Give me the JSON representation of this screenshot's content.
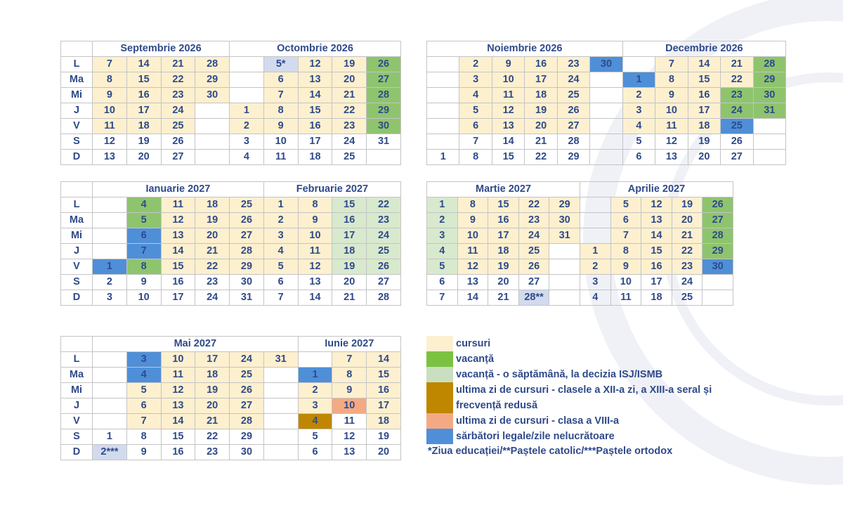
{
  "day_labels": [
    "L",
    "Ma",
    "Mi",
    "J",
    "V",
    "S",
    "D"
  ],
  "colors": {
    "c": "#fdf0cf",
    "v": "#8fc46e",
    "w": "#d8e9cd",
    "e": "#bf8600",
    "o": "#f5a983",
    "h": "#4f8fd8",
    "s": "#d2dbee"
  },
  "blocks": [
    {
      "labels": true,
      "months": [
        {
          "name": "Septembrie 2026",
          "weeks": [
            {
              "d": [
                "7",
                "8",
                "9",
                "10",
                "11",
                "12",
                "13"
              ],
              "k": "ccccc__"
            },
            {
              "d": [
                "14",
                "15",
                "16",
                "17",
                "18",
                "19",
                "20"
              ],
              "k": "ccccc__"
            },
            {
              "d": [
                "21",
                "22",
                "23",
                "24",
                "25",
                "26",
                "27"
              ],
              "k": "ccccc__"
            },
            {
              "d": [
                "28",
                "29",
                "30",
                "",
                "",
                "",
                ""
              ],
              "k": "ccc____"
            }
          ]
        },
        {
          "name": "Octombrie 2026",
          "weeks": [
            {
              "d": [
                "",
                "",
                "",
                "1",
                "2",
                "3",
                "4"
              ],
              "k": "___cc__"
            },
            {
              "d": [
                "5*",
                "6",
                "7",
                "8",
                "9",
                "10",
                "11"
              ],
              "k": "scccc__"
            },
            {
              "d": [
                "12",
                "13",
                "14",
                "15",
                "16",
                "17",
                "18"
              ],
              "k": "ccccc__"
            },
            {
              "d": [
                "19",
                "20",
                "21",
                "22",
                "23",
                "24",
                "25"
              ],
              "k": "ccccc__"
            },
            {
              "d": [
                "26",
                "27",
                "28",
                "29",
                "30",
                "31",
                ""
              ],
              "k": "vvvvv__"
            }
          ]
        }
      ]
    },
    {
      "labels": false,
      "months": [
        {
          "name": "Noiembrie 2026",
          "weeks": [
            {
              "d": [
                "",
                "",
                "",
                "",
                "",
                "",
                "1"
              ],
              "k": "_______"
            },
            {
              "d": [
                "2",
                "3",
                "4",
                "5",
                "6",
                "7",
                "8"
              ],
              "k": "ccccc__"
            },
            {
              "d": [
                "9",
                "10",
                "11",
                "12",
                "13",
                "14",
                "15"
              ],
              "k": "ccccc__"
            },
            {
              "d": [
                "16",
                "17",
                "18",
                "19",
                "20",
                "21",
                "22"
              ],
              "k": "ccccc__"
            },
            {
              "d": [
                "23",
                "24",
                "25",
                "26",
                "27",
                "28",
                "29"
              ],
              "k": "ccccc__"
            },
            {
              "d": [
                "30",
                "",
                "",
                "",
                "",
                "",
                ""
              ],
              "k": "h______"
            }
          ]
        },
        {
          "name": "Decembrie 2026",
          "weeks": [
            {
              "d": [
                "",
                "1",
                "2",
                "3",
                "4",
                "5",
                "6"
              ],
              "k": "_hccc__"
            },
            {
              "d": [
                "7",
                "8",
                "9",
                "10",
                "11",
                "12",
                "13"
              ],
              "k": "ccccc__"
            },
            {
              "d": [
                "14",
                "15",
                "16",
                "17",
                "18",
                "19",
                "20"
              ],
              "k": "ccccc__"
            },
            {
              "d": [
                "21",
                "22",
                "23",
                "24",
                "25",
                "26",
                "27"
              ],
              "k": "ccvvh__"
            },
            {
              "d": [
                "28",
                "29",
                "30",
                "31",
                "",
                "",
                ""
              ],
              "k": "vvvv___"
            }
          ]
        }
      ]
    },
    {
      "labels": true,
      "months": [
        {
          "name": "Ianuarie 2027",
          "weeks": [
            {
              "d": [
                "",
                "",
                "",
                "",
                "1",
                "2",
                "3"
              ],
              "k": "____h__"
            },
            {
              "d": [
                "4",
                "5",
                "6",
                "7",
                "8",
                "9",
                "10"
              ],
              "k": "vvhhv__"
            },
            {
              "d": [
                "11",
                "12",
                "13",
                "14",
                "15",
                "16",
                "17"
              ],
              "k": "ccccc__"
            },
            {
              "d": [
                "18",
                "19",
                "20",
                "21",
                "22",
                "23",
                "24"
              ],
              "k": "ccccc__"
            },
            {
              "d": [
                "25",
                "26",
                "27",
                "28",
                "29",
                "30",
                "31"
              ],
              "k": "ccccc__"
            }
          ]
        },
        {
          "name": "Februarie 2027",
          "weeks": [
            {
              "d": [
                "1",
                "2",
                "3",
                "4",
                "5",
                "6",
                "7"
              ],
              "k": "ccccc__"
            },
            {
              "d": [
                "8",
                "9",
                "10",
                "11",
                "12",
                "13",
                "14"
              ],
              "k": "ccccc__"
            },
            {
              "d": [
                "15",
                "16",
                "17",
                "18",
                "19",
                "20",
                "21"
              ],
              "k": "wwwww__"
            },
            {
              "d": [
                "22",
                "23",
                "24",
                "25",
                "26",
                "27",
                "28"
              ],
              "k": "wwwww__"
            }
          ]
        }
      ]
    },
    {
      "labels": false,
      "months": [
        {
          "name": "Martie 2027",
          "weeks": [
            {
              "d": [
                "1",
                "2",
                "3",
                "4",
                "5",
                "6",
                "7"
              ],
              "k": "wwwww__"
            },
            {
              "d": [
                "8",
                "9",
                "10",
                "11",
                "12",
                "13",
                "14"
              ],
              "k": "ccccc__"
            },
            {
              "d": [
                "15",
                "16",
                "17",
                "18",
                "19",
                "20",
                "21"
              ],
              "k": "ccccc__"
            },
            {
              "d": [
                "22",
                "23",
                "24",
                "25",
                "26",
                "27",
                "28**"
              ],
              "k": "ccccc_s"
            },
            {
              "d": [
                "29",
                "30",
                "31",
                "",
                "",
                "",
                ""
              ],
              "k": "ccc____"
            }
          ]
        },
        {
          "name": "Aprilie 2027",
          "weeks": [
            {
              "d": [
                "",
                "",
                "",
                "1",
                "2",
                "3",
                "4"
              ],
              "k": "___cc__"
            },
            {
              "d": [
                "5",
                "6",
                "7",
                "8",
                "9",
                "10",
                "11"
              ],
              "k": "ccccc__"
            },
            {
              "d": [
                "12",
                "13",
                "14",
                "15",
                "16",
                "17",
                "18"
              ],
              "k": "ccccc__"
            },
            {
              "d": [
                "19",
                "20",
                "21",
                "22",
                "23",
                "24",
                "25"
              ],
              "k": "ccccc__"
            },
            {
              "d": [
                "26",
                "27",
                "28",
                "29",
                "30",
                "",
                ""
              ],
              "k": "vvvvh__"
            }
          ]
        }
      ]
    },
    {
      "labels": true,
      "months": [
        {
          "name": "Mai 2027",
          "weeks": [
            {
              "d": [
                "",
                "",
                "",
                "",
                "",
                "1",
                "2***"
              ],
              "k": "______s"
            },
            {
              "d": [
                "3",
                "4",
                "5",
                "6",
                "7",
                "8",
                "9"
              ],
              "k": "hhccc__"
            },
            {
              "d": [
                "10",
                "11",
                "12",
                "13",
                "14",
                "15",
                "16"
              ],
              "k": "ccccc__"
            },
            {
              "d": [
                "17",
                "18",
                "19",
                "20",
                "21",
                "22",
                "23"
              ],
              "k": "ccccc__"
            },
            {
              "d": [
                "24",
                "25",
                "26",
                "27",
                "28",
                "29",
                "30"
              ],
              "k": "ccccc__"
            },
            {
              "d": [
                "31",
                "",
                "",
                "",
                "",
                "",
                ""
              ],
              "k": "c______"
            }
          ]
        },
        {
          "name": "Iunie 2027",
          "weeks": [
            {
              "d": [
                "",
                "1",
                "2",
                "3",
                "4",
                "5",
                "6"
              ],
              "k": "_hcce__"
            },
            {
              "d": [
                "7",
                "8",
                "9",
                "10",
                "11",
                "12",
                "13"
              ],
              "k": "ccco___"
            },
            {
              "d": [
                "14",
                "15",
                "16",
                "17",
                "18",
                "19",
                "20"
              ],
              "k": "ccccc__"
            }
          ]
        }
      ]
    }
  ],
  "legend": [
    {
      "key": "c",
      "label": "cursuri"
    },
    {
      "key": "v",
      "label": "vacanță"
    },
    {
      "key": "w",
      "label": "vacanță - o săptămână, la decizia ISJ/ISMB"
    },
    {
      "key": "e",
      "label": "ultima zi de cursuri - clasele a XII-a zi, a XIII-a seral și frecvență redusă"
    },
    {
      "key": "o",
      "label": "ultima zi de cursuri - clasa a VIII-a"
    },
    {
      "key": "h",
      "label": "sărbători legale/zile nelucrătoare"
    }
  ],
  "footnote": "*Ziua educației/**Paștele catolic/***Paștele ortodox"
}
